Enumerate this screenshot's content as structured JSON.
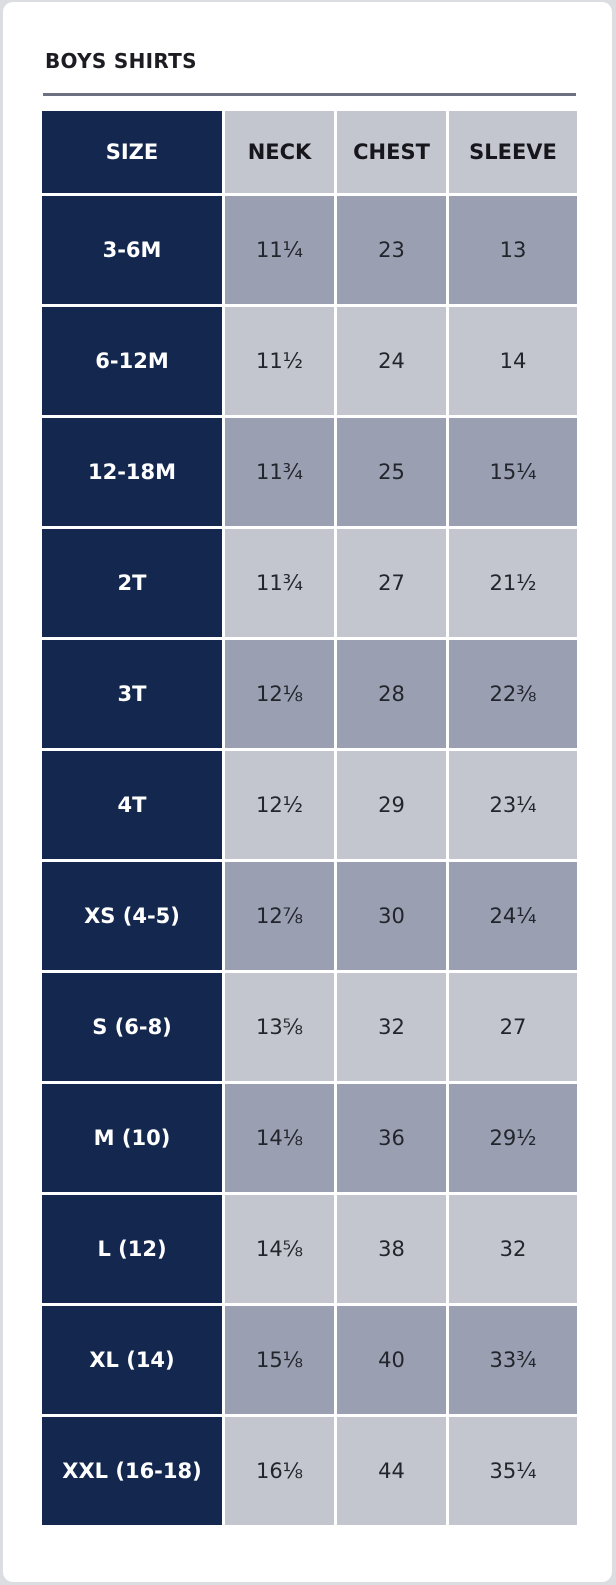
{
  "title": "BOYS SHIRTS",
  "colors": {
    "size_column": "#14284f",
    "header": "#c4c6cf",
    "row_dark": "#9a9fb2",
    "row_light": "#c4c6cf"
  },
  "headers": [
    "SIZE",
    "NECK",
    "CHEST",
    "SLEEVE"
  ],
  "rows": [
    {
      "size": "3-6M",
      "neck": "11¼",
      "chest": "23",
      "sleeve": "13"
    },
    {
      "size": "6-12M",
      "neck": "11½",
      "chest": "24",
      "sleeve": "14"
    },
    {
      "size": "12-18M",
      "neck": "11¾",
      "chest": "25",
      "sleeve": "15¼"
    },
    {
      "size": "2T",
      "neck": "11¾",
      "chest": "27",
      "sleeve": "21½"
    },
    {
      "size": "3T",
      "neck": "12⅛",
      "chest": "28",
      "sleeve": "22⅜"
    },
    {
      "size": "4T",
      "neck": "12½",
      "chest": "29",
      "sleeve": "23¼"
    },
    {
      "size": "XS (4-5)",
      "neck": "12⅞",
      "chest": "30",
      "sleeve": "24¼"
    },
    {
      "size": "S (6-8)",
      "neck": "13⅝",
      "chest": "32",
      "sleeve": "27"
    },
    {
      "size": "M (10)",
      "neck": "14⅛",
      "chest": "36",
      "sleeve": "29½"
    },
    {
      "size": "L (12)",
      "neck": "14⅝",
      "chest": "38",
      "sleeve": "32"
    },
    {
      "size": "XL (14)",
      "neck": "15⅛",
      "chest": "40",
      "sleeve": "33¾"
    },
    {
      "size": "XXL (16-18)",
      "neck": "16⅛",
      "chest": "44",
      "sleeve": "35¼"
    }
  ]
}
